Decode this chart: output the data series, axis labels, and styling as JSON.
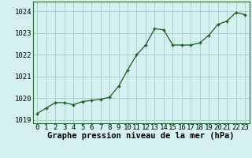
{
  "x": [
    0,
    1,
    2,
    3,
    4,
    5,
    6,
    7,
    8,
    9,
    10,
    11,
    12,
    13,
    14,
    15,
    16,
    17,
    18,
    19,
    20,
    21,
    22,
    23
  ],
  "y": [
    1019.3,
    1019.55,
    1019.8,
    1019.8,
    1019.7,
    1019.85,
    1019.9,
    1019.95,
    1020.05,
    1020.55,
    1021.3,
    1022.0,
    1022.45,
    1023.2,
    1023.15,
    1022.45,
    1022.45,
    1022.45,
    1022.55,
    1022.9,
    1023.4,
    1023.55,
    1023.95,
    1023.85
  ],
  "line_color": "#1a5c1a",
  "marker_color": "#1a5c1a",
  "bg_color": "#d5f0f0",
  "grid_color": "#aacfcf",
  "xlabel": "Graphe pression niveau de la mer (hPa)",
  "ylim": [
    1018.85,
    1024.45
  ],
  "yticks": [
    1019,
    1020,
    1021,
    1022,
    1023,
    1024
  ],
  "xlim": [
    -0.5,
    23.5
  ],
  "xticks": [
    0,
    1,
    2,
    3,
    4,
    5,
    6,
    7,
    8,
    9,
    10,
    11,
    12,
    13,
    14,
    15,
    16,
    17,
    18,
    19,
    20,
    21,
    22,
    23
  ],
  "xtick_labels": [
    "0",
    "1",
    "2",
    "3",
    "4",
    "5",
    "6",
    "7",
    "8",
    "9",
    "10",
    "11",
    "12",
    "13",
    "14",
    "15",
    "16",
    "17",
    "18",
    "19",
    "20",
    "21",
    "22",
    "23"
  ],
  "xlabel_fontsize": 7.5,
  "tick_fontsize": 6.5,
  "marker_size": 3.5,
  "line_width": 0.9
}
